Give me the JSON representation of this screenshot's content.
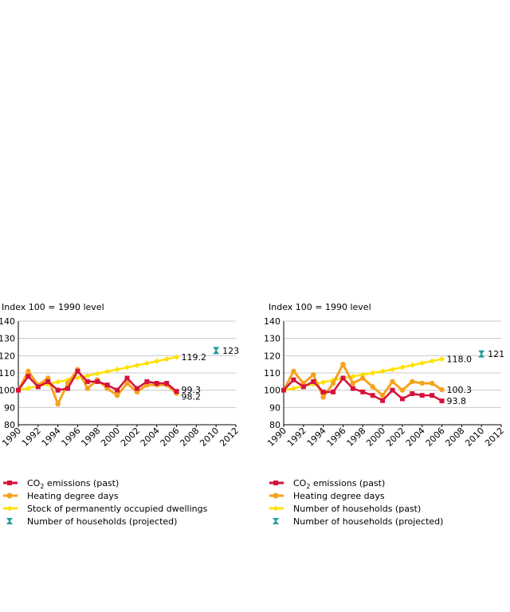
{
  "colors": {
    "co2": "#d6123d",
    "hdd": "#f5a31c",
    "stock": "#ffe100",
    "proj": "#1f9d9d",
    "grid": "#c8c8c8"
  },
  "chart_data": [
    {
      "type": "line",
      "ylabel": "Index 100 = 1990 level",
      "ylim": [
        80,
        140
      ],
      "yticks": [
        80,
        90,
        100,
        110,
        120,
        130,
        140
      ],
      "xlim": [
        1990,
        2012
      ],
      "xticks": [
        1990,
        1992,
        1994,
        1996,
        1998,
        2000,
        2002,
        2004,
        2006,
        2008,
        2010,
        2012
      ],
      "series": [
        {
          "name": "CO2 emissions (past)",
          "label_main": "CO",
          "label_sub": "2",
          "label_rest": " emissions (past)",
          "color_key": "co2",
          "marker": "square",
          "x": [
            1990,
            1991,
            1992,
            1993,
            1994,
            1995,
            1996,
            1997,
            1998,
            1999,
            2000,
            2001,
            2002,
            2003,
            2004,
            2005,
            2006
          ],
          "y": [
            100,
            108,
            102,
            105,
            100,
            101,
            111,
            105,
            105,
            103,
            100,
            107,
            101,
            105,
            104,
            104,
            99.3
          ],
          "end_label": "99.3"
        },
        {
          "name": "Heating degree days",
          "label_main": "Heating degree days",
          "label_sub": "",
          "label_rest": "",
          "color_key": "hdd",
          "marker": "circle",
          "x": [
            1990,
            1991,
            1992,
            1993,
            1994,
            1995,
            1996,
            1997,
            1998,
            1999,
            2000,
            2001,
            2002,
            2003,
            2004,
            2005,
            2006
          ],
          "y": [
            100,
            111,
            103,
            107,
            92,
            104,
            112,
            101,
            106,
            101,
            97,
            104,
            99,
            103,
            103,
            103,
            98.2
          ],
          "end_label": "98.2"
        },
        {
          "name": "Stock of permanently occupied dwellings",
          "label_main": "Stock of permanently occupied dwellings",
          "label_sub": "",
          "label_rest": "",
          "color_key": "stock",
          "marker": "diamond",
          "x": [
            1990,
            1991,
            1992,
            1993,
            1994,
            1995,
            1996,
            1997,
            1998,
            1999,
            2000,
            2001,
            2002,
            2003,
            2004,
            2005,
            2006
          ],
          "y": [
            100,
            101.2,
            102.4,
            103.6,
            104.8,
            106,
            107.2,
            108.4,
            109.6,
            110.8,
            112,
            113.2,
            114.4,
            115.6,
            116.8,
            118,
            119.2
          ],
          "end_label": "119.2"
        },
        {
          "name": "Number of households (projected)",
          "label_main": "Number of households (projected)",
          "label_sub": "",
          "label_rest": "",
          "color_key": "proj",
          "marker": "cross",
          "x": [
            2010
          ],
          "y": [
            123
          ],
          "end_label": "123"
        }
      ]
    },
    {
      "type": "line",
      "ylabel": "Index 100 = 1990 level",
      "ylim": [
        80,
        140
      ],
      "yticks": [
        80,
        90,
        100,
        110,
        120,
        130,
        140
      ],
      "xlim": [
        1990,
        2012
      ],
      "xticks": [
        1990,
        1992,
        1994,
        1996,
        1998,
        2000,
        2002,
        2004,
        2006,
        2008,
        2010,
        2012
      ],
      "series": [
        {
          "name": "CO2 emissions (past)",
          "label_main": "CO",
          "label_sub": "2",
          "label_rest": " emissions (past)",
          "color_key": "co2",
          "marker": "square",
          "x": [
            1990,
            1991,
            1992,
            1993,
            1994,
            1995,
            1996,
            1997,
            1998,
            1999,
            2000,
            2001,
            2002,
            2003,
            2004,
            2005,
            2006
          ],
          "y": [
            100,
            106,
            102,
            105,
            99,
            99,
            107,
            101,
            99,
            97,
            94,
            100,
            95,
            98,
            97,
            97,
            93.8
          ],
          "end_label": "93.8"
        },
        {
          "name": "Heating degree days",
          "label_main": "Heating degree days",
          "label_sub": "",
          "label_rest": "",
          "color_key": "hdd",
          "marker": "circle",
          "x": [
            1990,
            1991,
            1992,
            1993,
            1994,
            1995,
            1996,
            1997,
            1998,
            1999,
            2000,
            2001,
            2002,
            2003,
            2004,
            2005,
            2006
          ],
          "y": [
            100,
            111,
            104,
            109,
            96,
            104,
            115,
            104,
            107,
            102,
            97,
            105,
            100,
            105,
            104,
            104,
            100.3
          ],
          "end_label": "100.3"
        },
        {
          "name": "Number of households (past)",
          "label_main": "Number of households (past)",
          "label_sub": "",
          "label_rest": "",
          "color_key": "stock",
          "marker": "diamond",
          "x": [
            1990,
            1991,
            1992,
            1993,
            1994,
            1995,
            1996,
            1997,
            1998,
            1999,
            2000,
            2001,
            2002,
            2003,
            2004,
            2005,
            2006
          ],
          "y": [
            100,
            101,
            102.5,
            103.5,
            104.6,
            105.8,
            107,
            108,
            109,
            110,
            111,
            112,
            113.3,
            114.5,
            115.7,
            116.9,
            118.0
          ],
          "end_label": "118.0"
        },
        {
          "name": "Number of households (projected)",
          "label_main": "Number of households (projected)",
          "label_sub": "",
          "label_rest": "",
          "color_key": "proj",
          "marker": "cross",
          "x": [
            2010
          ],
          "y": [
            121
          ],
          "end_label": "121"
        }
      ]
    }
  ]
}
